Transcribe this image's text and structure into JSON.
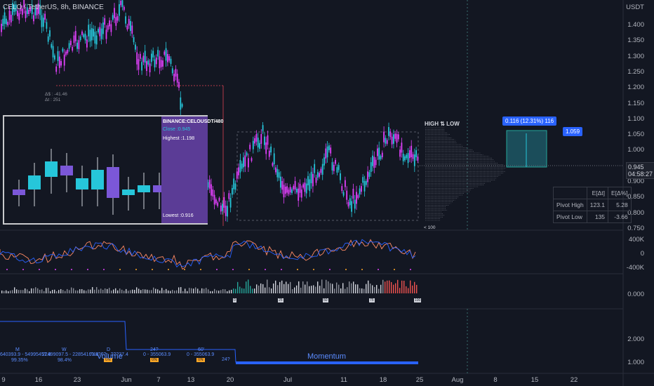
{
  "header": {
    "symbol": "CELO / TetherUS, 8h, BINANCE"
  },
  "price_axis": {
    "currency": "USDT",
    "labels": [
      "1.400",
      "1.350",
      "1.300",
      "1.250",
      "1.200",
      "1.150",
      "1.100",
      "1.050",
      "1.000",
      "0.950",
      "0.900",
      "0.850",
      "0.800",
      "0.750"
    ],
    "current_price": "0.945",
    "countdown": "04:58:27"
  },
  "osc_axis": [
    "400K",
    "0",
    "-400K"
  ],
  "flow_axis": [
    "0.000"
  ],
  "mom_axis": [
    "2.000",
    "1.000"
  ],
  "time_axis": [
    "9",
    "16",
    "23",
    "Jun",
    "7",
    "13",
    "20",
    "Jul",
    "11",
    "18",
    "25",
    "Aug",
    "8",
    "15",
    "22"
  ],
  "inset": {
    "title": "BINANCE:CELOUSDT/480",
    "close": "Close :0.945",
    "highest": "Highest :1.198",
    "lowest": "Lowest :0.916"
  },
  "annotations": {
    "delta_price": "Δ$ : -41.46",
    "delta_time": "Δt : 251",
    "high_low": "HIGH ⇅ LOW",
    "measure": "0.116 (12.31%) 116",
    "target": "1.059",
    "low_mark": "< 100"
  },
  "pivot_table": {
    "headers": [
      "",
      "E[Δt]",
      "E[Δ%]"
    ],
    "rows": [
      [
        "Pivot High",
        "123.1",
        "5.28"
      ],
      [
        "Pivot Low",
        "135",
        "-3.66"
      ]
    ]
  },
  "markers": [
    "0",
    "25",
    "50",
    "75",
    "100"
  ],
  "bottom": {
    "volume_label": "Volume",
    "momentum_label": "Momentum",
    "periods": [
      "M",
      "W",
      "D",
      "24?",
      "60'"
    ],
    "values": [
      "640393.9 - 54995457.8",
      "22499097.5 - 22854161.4",
      "749??? - ???37.4",
      "0 - 355063.9",
      "0 - 355063.9"
    ],
    "pct1": "99.35%",
    "pct2": "98.4%",
    "badges": [
      "0N",
      "0N",
      "0N"
    ],
    "small": "24?"
  },
  "colors": {
    "bg": "#131722",
    "up": "#26c6da",
    "down": "#e040fb",
    "accent": "#2962ff",
    "orange": "#ffa726"
  }
}
